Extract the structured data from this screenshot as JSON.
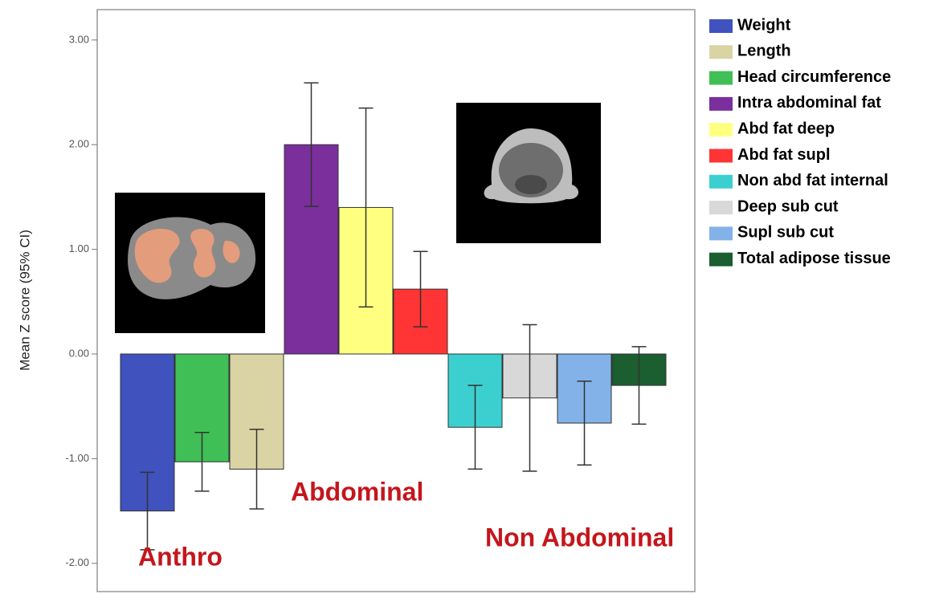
{
  "chart_data": {
    "type": "bar",
    "y_label": "Mean Z score (95% CI)",
    "ylim": [
      -2.27,
      3.29
    ],
    "yticks": [
      {
        "value": 3,
        "label": "3.00"
      },
      {
        "value": 2,
        "label": "2.00"
      },
      {
        "value": 1,
        "label": "1.00"
      },
      {
        "value": 0,
        "label": "0.00"
      },
      {
        "value": -1,
        "label": "-1.00"
      },
      {
        "value": -2,
        "label": "-2.00"
      }
    ],
    "grid": false,
    "legend": "right",
    "series": [
      {
        "name": "Weight",
        "color": "#3f52bd",
        "values": [
          -1.5
        ],
        "errors": [
          0.37
        ]
      },
      {
        "name": "Head circumference",
        "color": "#3fbf55",
        "values": [
          -1.03
        ],
        "errors": [
          0.28
        ]
      },
      {
        "name": "Length",
        "color": "#dad3a3",
        "values": [
          -1.1
        ],
        "errors": [
          0.38
        ]
      },
      {
        "name": "Intra abdominal fat",
        "color": "#7a2f9c",
        "values": [
          2.0
        ],
        "errors": [
          0.59
        ]
      },
      {
        "name": "Abd fat  deep",
        "color": "#ffff80",
        "values": [
          1.4
        ],
        "errors": [
          0.95
        ]
      },
      {
        "name": "Abd fat supl",
        "color": "#ff3535",
        "values": [
          0.62
        ],
        "errors": [
          0.36
        ]
      },
      {
        "name": "Non abd fat  internal",
        "color": "#3ccfd0",
        "values": [
          -0.7
        ],
        "errors": [
          0.4
        ]
      },
      {
        "name": "Deep sub cut",
        "color": "#d8d8d8",
        "values": [
          -0.42
        ],
        "errors": [
          0.7
        ]
      },
      {
        "name": "Supl sub cut",
        "color": "#82b2e8",
        "values": [
          -0.66
        ],
        "errors": [
          0.4
        ]
      },
      {
        "name": "Total adipose tissue",
        "color": "#1b5e30",
        "values": [
          -0.3
        ],
        "errors": [
          0.37
        ]
      }
    ],
    "annotations": [
      "Anthro",
      "Abdominal",
      "Non Abdominal"
    ]
  }
}
